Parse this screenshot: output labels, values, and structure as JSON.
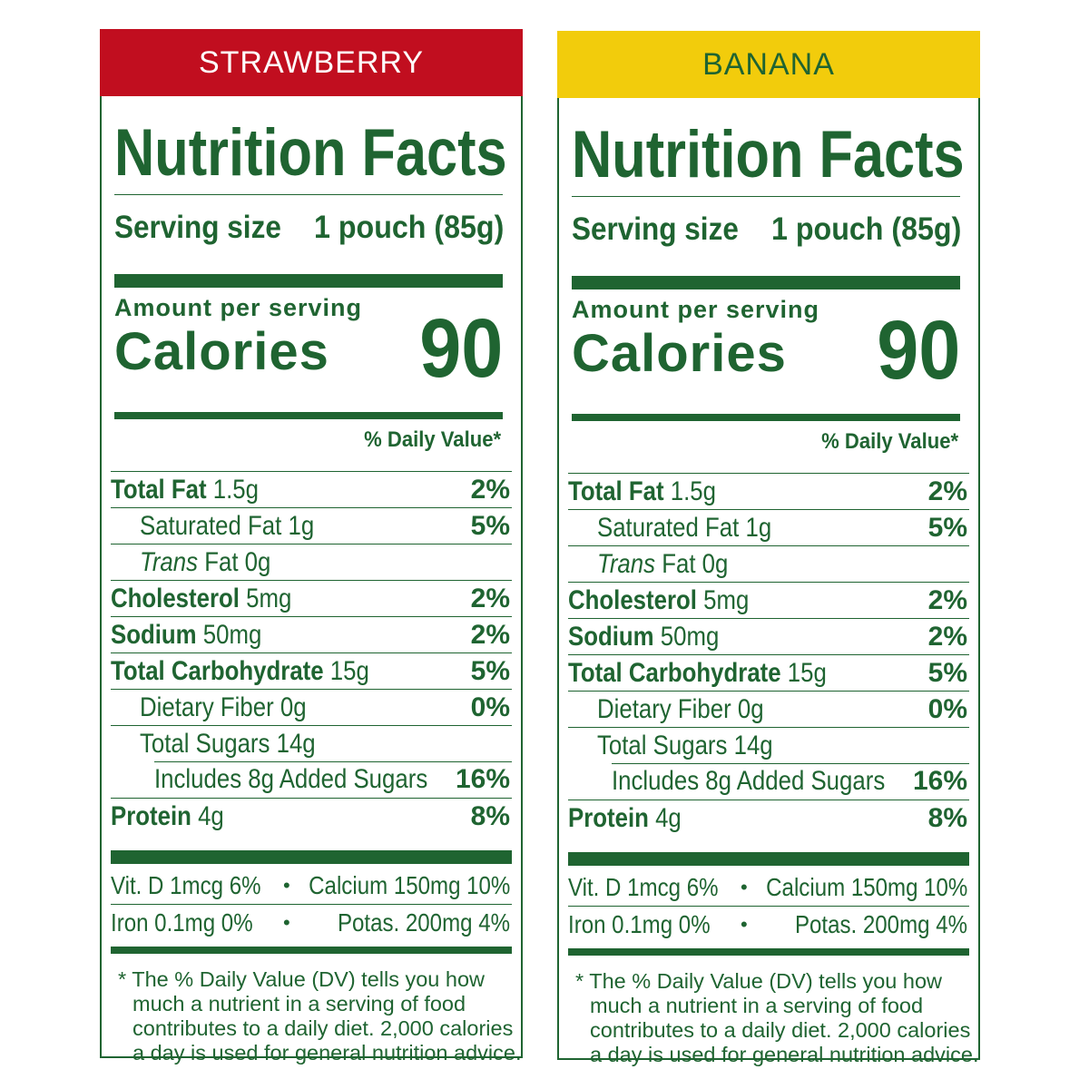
{
  "labels": [
    {
      "flavor": "STRAWBERRY",
      "banner_color": "#c10e1f",
      "banner_text_color": "#ffffff",
      "title": "Nutrition Facts",
      "serving_label": "Serving size",
      "serving_value": "1 pouch (85g)",
      "amount_per_serving": "Amount per serving",
      "calories_label": "Calories",
      "calories_value": "90",
      "dv_header": "% Daily Value*",
      "nutrients": [
        {
          "name": "Total Fat",
          "amount": "1.5g",
          "dv": "2%"
        },
        {
          "name": "Saturated Fat",
          "amount": "1g",
          "dv": "5%"
        },
        {
          "name": "Trans",
          "amount": "Fat 0g",
          "dv": ""
        },
        {
          "name": "Cholesterol",
          "amount": "5mg",
          "dv": "2%"
        },
        {
          "name": "Sodium",
          "amount": "50mg",
          "dv": "2%"
        },
        {
          "name": "Total Carbohydrate",
          "amount": "15g",
          "dv": "5%"
        },
        {
          "name": "Dietary Fiber",
          "amount": "0g",
          "dv": "0%"
        },
        {
          "name": "Total Sugars",
          "amount": "14g",
          "dv": ""
        },
        {
          "name": "Includes 8g Added Sugars",
          "amount": "",
          "dv": "16%"
        },
        {
          "name": "Protein",
          "amount": "4g",
          "dv": "8%"
        }
      ],
      "vitamins": [
        {
          "left": "Vit. D 1mcg 6%",
          "right": "Calcium 150mg 10%"
        },
        {
          "left": "Iron 0.1mg 0%",
          "right": "Potas. 200mg 4%"
        }
      ],
      "bullet": "•",
      "footnote": [
        "* The % Daily Value (DV) tells you how",
        "much a nutrient in a serving of food",
        "contributes to a daily diet. 2,000 calories",
        "a day is used for general nutrition advice."
      ]
    },
    {
      "flavor": "BANANA",
      "banner_color": "#f2cc0c",
      "banner_text_color": "#1f6431",
      "title": "Nutrition Facts",
      "serving_label": "Serving size",
      "serving_value": "1 pouch (85g)",
      "amount_per_serving": "Amount per serving",
      "calories_label": "Calories",
      "calories_value": "90",
      "dv_header": "% Daily Value*",
      "nutrients": [
        {
          "name": "Total Fat",
          "amount": "1.5g",
          "dv": "2%"
        },
        {
          "name": "Saturated Fat",
          "amount": "1g",
          "dv": "5%"
        },
        {
          "name": "Trans",
          "amount": "Fat 0g",
          "dv": ""
        },
        {
          "name": "Cholesterol",
          "amount": "5mg",
          "dv": "2%"
        },
        {
          "name": "Sodium",
          "amount": "50mg",
          "dv": "2%"
        },
        {
          "name": "Total Carbohydrate",
          "amount": "15g",
          "dv": "5%"
        },
        {
          "name": "Dietary Fiber",
          "amount": "0g",
          "dv": "0%"
        },
        {
          "name": "Total Sugars",
          "amount": "14g",
          "dv": ""
        },
        {
          "name": "Includes 8g Added Sugars",
          "amount": "",
          "dv": "16%"
        },
        {
          "name": "Protein",
          "amount": "4g",
          "dv": "8%"
        }
      ],
      "vitamins": [
        {
          "left": "Vit. D 1mcg 6%",
          "right": "Calcium 150mg 10%"
        },
        {
          "left": "Iron 0.1mg 0%",
          "right": "Potas. 200mg 4%"
        }
      ],
      "bullet": "•",
      "footnote": [
        "* The % Daily Value (DV) tells you how",
        "much a nutrient in a serving of food",
        "contributes to a daily diet. 2,000 calories",
        "a day is used for general nutrition advice."
      ]
    }
  ]
}
